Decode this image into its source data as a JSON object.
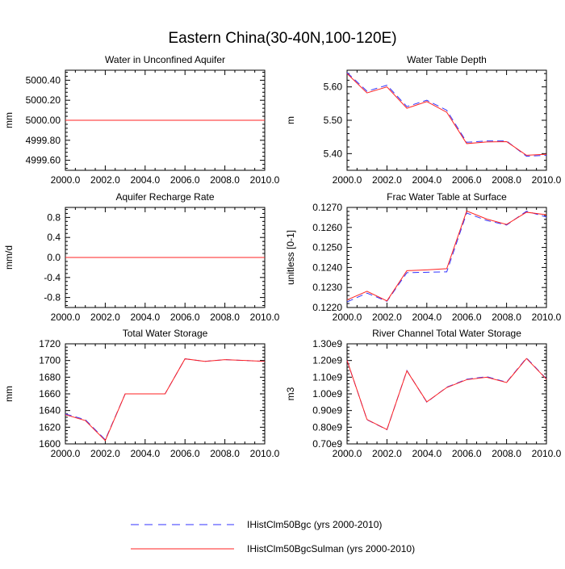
{
  "title": "Eastern China(30-40N,100-120E)",
  "colors": {
    "series_a": "#3333ff",
    "series_b": "#ff2222"
  },
  "legend": {
    "placement": "bottom-center",
    "items": [
      {
        "label": "IHistClm50Bgc (yrs 2000-2010)",
        "style": "dashed",
        "color": "#3333ff"
      },
      {
        "label": "IHistClm50BgcSulman (yrs 2000-2010)",
        "style": "solid",
        "color": "#ff2222"
      }
    ]
  },
  "chart_data": [
    {
      "type": "line",
      "title": "Water in Unconfined Aquifer",
      "ylabel": "mm",
      "xlim": [
        2000,
        2010
      ],
      "ylim": [
        4999.5,
        5000.5
      ],
      "xticks": [
        2000,
        2002,
        2004,
        2006,
        2008,
        2010
      ],
      "xtick_labels": [
        "2000.0",
        "2002.0",
        "2004.0",
        "2006.0",
        "2008.0",
        "2010.0"
      ],
      "yticks": [
        4999.6,
        4999.8,
        5000.0,
        5000.2,
        5000.4
      ],
      "ytick_labels": [
        "4999.60",
        "4999.80",
        "5000.00",
        "5000.20",
        "5000.40"
      ],
      "x": [
        2000,
        2001,
        2002,
        2003,
        2004,
        2005,
        2006,
        2007,
        2008,
        2009,
        2010
      ],
      "series": [
        {
          "name": "IHistClm50Bgc (yrs 2000-2010)",
          "values": [
            5000,
            5000,
            5000,
            5000,
            5000,
            5000,
            5000,
            5000,
            5000,
            5000,
            5000
          ]
        },
        {
          "name": "IHistClm50BgcSulman (yrs 2000-2010)",
          "values": [
            5000,
            5000,
            5000,
            5000,
            5000,
            5000,
            5000,
            5000,
            5000,
            5000,
            5000
          ]
        }
      ]
    },
    {
      "type": "line",
      "title": "Water Table Depth",
      "ylabel": "m",
      "xlim": [
        2000,
        2010
      ],
      "ylim": [
        5.35,
        5.65
      ],
      "xticks": [
        2000,
        2002,
        2004,
        2006,
        2008,
        2010
      ],
      "xtick_labels": [
        "2000.0",
        "2002.0",
        "2004.0",
        "2006.0",
        "2008.0",
        "2010.0"
      ],
      "yticks": [
        5.4,
        5.5,
        5.6
      ],
      "ytick_labels": [
        "5.40",
        "5.50",
        "5.60"
      ],
      "x": [
        2000,
        2001,
        2002,
        2003,
        2004,
        2005,
        2006,
        2007,
        2008,
        2009,
        2010
      ],
      "series": [
        {
          "name": "IHistClm50Bgc (yrs 2000-2010)",
          "values": [
            5.643,
            5.587,
            5.605,
            5.541,
            5.56,
            5.53,
            5.434,
            5.438,
            5.438,
            5.392,
            5.395
          ]
        },
        {
          "name": "IHistClm50BgcSulman (yrs 2000-2010)",
          "values": [
            5.64,
            5.582,
            5.6,
            5.536,
            5.556,
            5.524,
            5.43,
            5.435,
            5.436,
            5.395,
            5.398
          ]
        }
      ]
    },
    {
      "type": "line",
      "title": "Aquifer Recharge Rate",
      "ylabel": "mm/d",
      "xlim": [
        2000,
        2010
      ],
      "ylim": [
        -1.0,
        1.0
      ],
      "xticks": [
        2000,
        2002,
        2004,
        2006,
        2008,
        2010
      ],
      "xtick_labels": [
        "2000.0",
        "2002.0",
        "2004.0",
        "2006.0",
        "2008.0",
        "2010.0"
      ],
      "yticks": [
        -0.8,
        -0.4,
        0.0,
        0.4,
        0.8
      ],
      "ytick_labels": [
        "-0.8",
        "-0.4",
        "0.0",
        "0.4",
        "0.8"
      ],
      "x": [
        2000,
        2001,
        2002,
        2003,
        2004,
        2005,
        2006,
        2007,
        2008,
        2009,
        2010
      ],
      "series": [
        {
          "name": "IHistClm50Bgc (yrs 2000-2010)",
          "values": [
            0,
            0,
            0,
            0,
            0,
            0,
            0,
            0,
            0,
            0,
            0
          ]
        },
        {
          "name": "IHistClm50BgcSulman (yrs 2000-2010)",
          "values": [
            0,
            0,
            0,
            0,
            0,
            0,
            0,
            0,
            0,
            0,
            0
          ]
        }
      ]
    },
    {
      "type": "line",
      "title": "Frac Water Table at Surface",
      "ylabel": "unitless [0-1]",
      "xlim": [
        2000,
        2010
      ],
      "ylim": [
        0.122,
        0.127
      ],
      "xticks": [
        2000,
        2002,
        2004,
        2006,
        2008,
        2010
      ],
      "xtick_labels": [
        "2000.0",
        "2002.0",
        "2004.0",
        "2006.0",
        "2008.0",
        "2010.0"
      ],
      "yticks": [
        0.122,
        0.123,
        0.124,
        0.125,
        0.126,
        0.127
      ],
      "ytick_labels": [
        "0.1220",
        "0.1230",
        "0.1240",
        "0.1250",
        "0.1260",
        "0.1270"
      ],
      "x": [
        2000,
        2001,
        2002,
        2003,
        2004,
        2005,
        2006,
        2007,
        2008,
        2009,
        2010
      ],
      "series": [
        {
          "name": "IHistClm50Bgc (yrs 2000-2010)",
          "values": [
            0.12228,
            0.12272,
            0.12231,
            0.12374,
            0.12376,
            0.12378,
            0.12672,
            0.12635,
            0.12612,
            0.12681,
            0.12652
          ]
        },
        {
          "name": "IHistClm50BgcSulman (yrs 2000-2010)",
          "values": [
            0.12238,
            0.12281,
            0.12233,
            0.12384,
            0.12388,
            0.12394,
            0.12682,
            0.12642,
            0.12615,
            0.12676,
            0.12663
          ]
        }
      ]
    },
    {
      "type": "line",
      "title": "Total Water Storage",
      "ylabel": "mm",
      "xlim": [
        2000,
        2010
      ],
      "ylim": [
        1600,
        1720
      ],
      "xticks": [
        2000,
        2002,
        2004,
        2006,
        2008,
        2010
      ],
      "xtick_labels": [
        "2000.0",
        "2002.0",
        "2004.0",
        "2006.0",
        "2008.0",
        "2010.0"
      ],
      "yticks": [
        1600,
        1620,
        1640,
        1660,
        1680,
        1700,
        1720
      ],
      "ytick_labels": [
        "1600",
        "1620",
        "1640",
        "1660",
        "1680",
        "1700",
        "1720"
      ],
      "x": [
        2000,
        2001,
        2002,
        2003,
        2004,
        2005,
        2006,
        2007,
        2008,
        2009,
        2010
      ],
      "series": [
        {
          "name": "IHistClm50Bgc (yrs 2000-2010)",
          "values": [
            1636,
            1629,
            1605,
            1660,
            1660,
            1660,
            1702,
            1699,
            1701,
            1700,
            1699
          ]
        },
        {
          "name": "IHistClm50BgcSulman (yrs 2000-2010)",
          "values": [
            1635,
            1628,
            1604,
            1660,
            1660,
            1660,
            1702,
            1699,
            1701,
            1700,
            1699
          ]
        }
      ]
    },
    {
      "type": "line",
      "title": "River Channel Total Water Storage",
      "ylabel": "m3",
      "xlim": [
        2000,
        2010
      ],
      "ylim": [
        700000000,
        1300000000
      ],
      "xticks": [
        2000,
        2002,
        2004,
        2006,
        2008,
        2010
      ],
      "xtick_labels": [
        "2000.0",
        "2002.0",
        "2004.0",
        "2006.0",
        "2008.0",
        "2010.0"
      ],
      "yticks": [
        700000000,
        800000000,
        900000000,
        1000000000,
        1100000000,
        1200000000,
        1300000000
      ],
      "ytick_labels": [
        "0.70e9",
        "0.80e9",
        "0.90e9",
        "1.00e9",
        "1.10e9",
        "1.20e9",
        "1.30e9"
      ],
      "x": [
        2000,
        2001,
        2002,
        2003,
        2004,
        2005,
        2006,
        2007,
        2008,
        2009,
        2010
      ],
      "series": [
        {
          "name": "IHistClm50Bgc (yrs 2000-2010)",
          "values": [
            1200000000,
            845000000,
            785000000,
            1140000000,
            950000000,
            1040000000,
            1088000000,
            1103000000,
            1070000000,
            1215000000,
            1090000000
          ]
        },
        {
          "name": "IHistClm50BgcSulman (yrs 2000-2010)",
          "values": [
            1200000000,
            846000000,
            786000000,
            1138000000,
            952000000,
            1038000000,
            1085000000,
            1100000000,
            1068000000,
            1212000000,
            1088000000
          ]
        }
      ]
    }
  ]
}
